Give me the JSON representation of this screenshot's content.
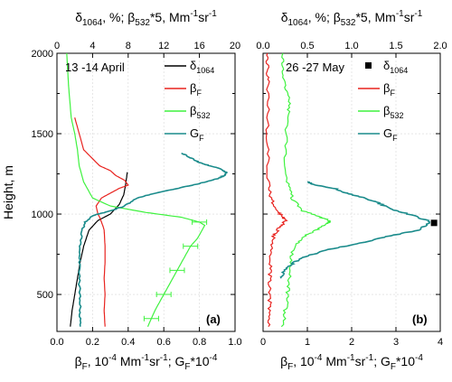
{
  "chart_data": [
    {
      "type": "line",
      "panel_label": "(a)",
      "annotation": "13 -14 April",
      "ylabel": "Height, m",
      "ylim": [
        270,
        2000
      ],
      "y_ticks": [
        500,
        1000,
        1500,
        2000
      ],
      "bottom_axis": {
        "label": "β_F, 10^-4 Mm^-1sr^-1;   G_F*10^-4",
        "range": [
          0,
          1.0
        ],
        "ticks": [
          "0.0",
          "0.2",
          "0.4",
          "0.6",
          "0.8",
          "1.0"
        ]
      },
      "top_axis": {
        "label": "δ_1064, %;  β_532*5, Mm^-1sr^-1",
        "range": [
          0,
          20
        ],
        "ticks": [
          "0",
          "4",
          "8",
          "12",
          "16",
          "20"
        ]
      },
      "legend": {
        "placement": "top-right",
        "entries": [
          {
            "base": "δ",
            "sub": "1064",
            "color": "#000000"
          },
          {
            "base": "β",
            "sub": "F",
            "color": "#e8231f"
          },
          {
            "base": "β",
            "sub": "532",
            "color": "#3ff23f"
          },
          {
            "base": "G",
            "sub": "F",
            "color": "#1a8b8b"
          }
        ]
      },
      "series": [
        {
          "key": "delta1064",
          "axis": "top",
          "color": "#000000",
          "x": [
            1.5,
            1.7,
            2.0,
            2.3,
            2.6,
            3.0,
            3.6,
            4.6,
            6.0,
            7.0,
            7.5,
            7.7,
            7.8,
            7.9
          ],
          "y": [
            300,
            400,
            500,
            600,
            700,
            800,
            900,
            960,
            1000,
            1060,
            1120,
            1180,
            1220,
            1260
          ]
        },
        {
          "key": "betaF",
          "axis": "bottom",
          "color": "#e8231f",
          "x": [
            0.27,
            0.265,
            0.27,
            0.265,
            0.27,
            0.27,
            0.265,
            0.26,
            0.25,
            0.24,
            0.23,
            0.22,
            0.25,
            0.3,
            0.35,
            0.4,
            0.38,
            0.33,
            0.3,
            0.24,
            0.15,
            0.1
          ],
          "y": [
            300,
            400,
            500,
            600,
            700,
            800,
            900,
            920,
            950,
            980,
            1000,
            1050,
            1100,
            1130,
            1160,
            1180,
            1210,
            1240,
            1270,
            1300,
            1400,
            1600
          ]
        },
        {
          "key": "beta532",
          "axis": "top",
          "color": "#3ff23f",
          "x": [
            10.2,
            11.0,
            12.0,
            13.0,
            14.0,
            15.0,
            15.8,
            16.3,
            16.6,
            16.0,
            14.0,
            10.0,
            6.0,
            4.0,
            3.0,
            2.5,
            2.3,
            2.0,
            1.6,
            1.3,
            1.1
          ],
          "y": [
            300,
            400,
            500,
            600,
            700,
            800,
            850,
            900,
            930,
            950,
            980,
            1010,
            1050,
            1100,
            1200,
            1300,
            1400,
            1500,
            1600,
            1800,
            2000
          ]
        },
        {
          "key": "GF",
          "axis": "bottom",
          "color": "#1a8b8b",
          "x": [
            0.13,
            0.13,
            0.128,
            0.125,
            0.125,
            0.13,
            0.14,
            0.16,
            0.2,
            0.3,
            0.38,
            0.45,
            0.55,
            0.68,
            0.8,
            0.9,
            0.94,
            0.95,
            0.92,
            0.86,
            0.8,
            0.75,
            0.7
          ],
          "y": [
            300,
            400,
            500,
            600,
            700,
            800,
            900,
            950,
            990,
            1020,
            1050,
            1100,
            1130,
            1160,
            1190,
            1220,
            1240,
            1260,
            1280,
            1300,
            1320,
            1350,
            1380
          ]
        }
      ],
      "error_bar_y": [
        350,
        500,
        650,
        800,
        950
      ]
    },
    {
      "type": "line",
      "panel_label": "(b)",
      "annotation": "26 -27 May",
      "ylim": [
        270,
        2000
      ],
      "bottom_axis": {
        "label": "β_F, 10^-4 Mm^-1sr^-1;   G_F*10^-4",
        "range": [
          0,
          4
        ],
        "ticks": [
          "0",
          "1",
          "2",
          "3",
          "4"
        ]
      },
      "top_axis": {
        "label": "δ_1064, %;  β_532*5, Mm^-1sr^-1",
        "range": [
          0,
          2.0
        ],
        "ticks": [
          "0.0",
          "0.5",
          "1.0",
          "1.5",
          "2.0"
        ]
      },
      "legend": {
        "placement": "top-right",
        "entries": [
          {
            "base": "δ",
            "sub": "1064",
            "color": "#000000",
            "marker": "square"
          },
          {
            "base": "β",
            "sub": "F",
            "color": "#e8231f"
          },
          {
            "base": "β",
            "sub": "532",
            "color": "#3ff23f"
          },
          {
            "base": "G",
            "sub": "F",
            "color": "#1a8b8b"
          }
        ]
      },
      "points_delta1064": {
        "x": [
          1.93
        ],
        "y": [
          945
        ]
      },
      "series": [
        {
          "key": "betaF",
          "axis": "bottom",
          "color": "#e8231f",
          "x": [
            0.12,
            0.14,
            0.16,
            0.15,
            0.17,
            0.2,
            0.25,
            0.35,
            0.45,
            0.5,
            0.45,
            0.3,
            0.18,
            0.12,
            0.1,
            0.1,
            0.12,
            0.11,
            0.1
          ],
          "y": [
            300,
            400,
            500,
            600,
            700,
            800,
            870,
            910,
            940,
            960,
            980,
            1020,
            1100,
            1200,
            1400,
            1600,
            1800,
            1900,
            2000
          ]
        },
        {
          "key": "beta532",
          "axis": "bottom",
          "color": "#3ff23f",
          "x": [
            0.45,
            0.5,
            0.55,
            0.6,
            0.62,
            0.7,
            0.9,
            1.2,
            1.45,
            1.5,
            1.3,
            0.9,
            0.65,
            0.55,
            0.5,
            0.55,
            0.6,
            0.5,
            0.45,
            0.45
          ],
          "y": [
            300,
            400,
            500,
            600,
            700,
            800,
            860,
            900,
            940,
            960,
            980,
            1020,
            1100,
            1200,
            1400,
            1600,
            1700,
            1800,
            1900,
            2000
          ]
        },
        {
          "key": "GF",
          "axis": "bottom",
          "color": "#1a8b8b",
          "x": [
            0.4,
            0.5,
            0.7,
            1.0,
            1.5,
            2.2,
            2.8,
            3.5,
            3.8,
            3.4,
            2.9,
            2.6,
            2.3,
            1.9,
            1.6,
            1.2,
            1.0
          ],
          "y": [
            600,
            660,
            700,
            740,
            780,
            820,
            860,
            900,
            950,
            990,
            1030,
            1070,
            1100,
            1130,
            1160,
            1180,
            1200
          ]
        }
      ]
    }
  ]
}
